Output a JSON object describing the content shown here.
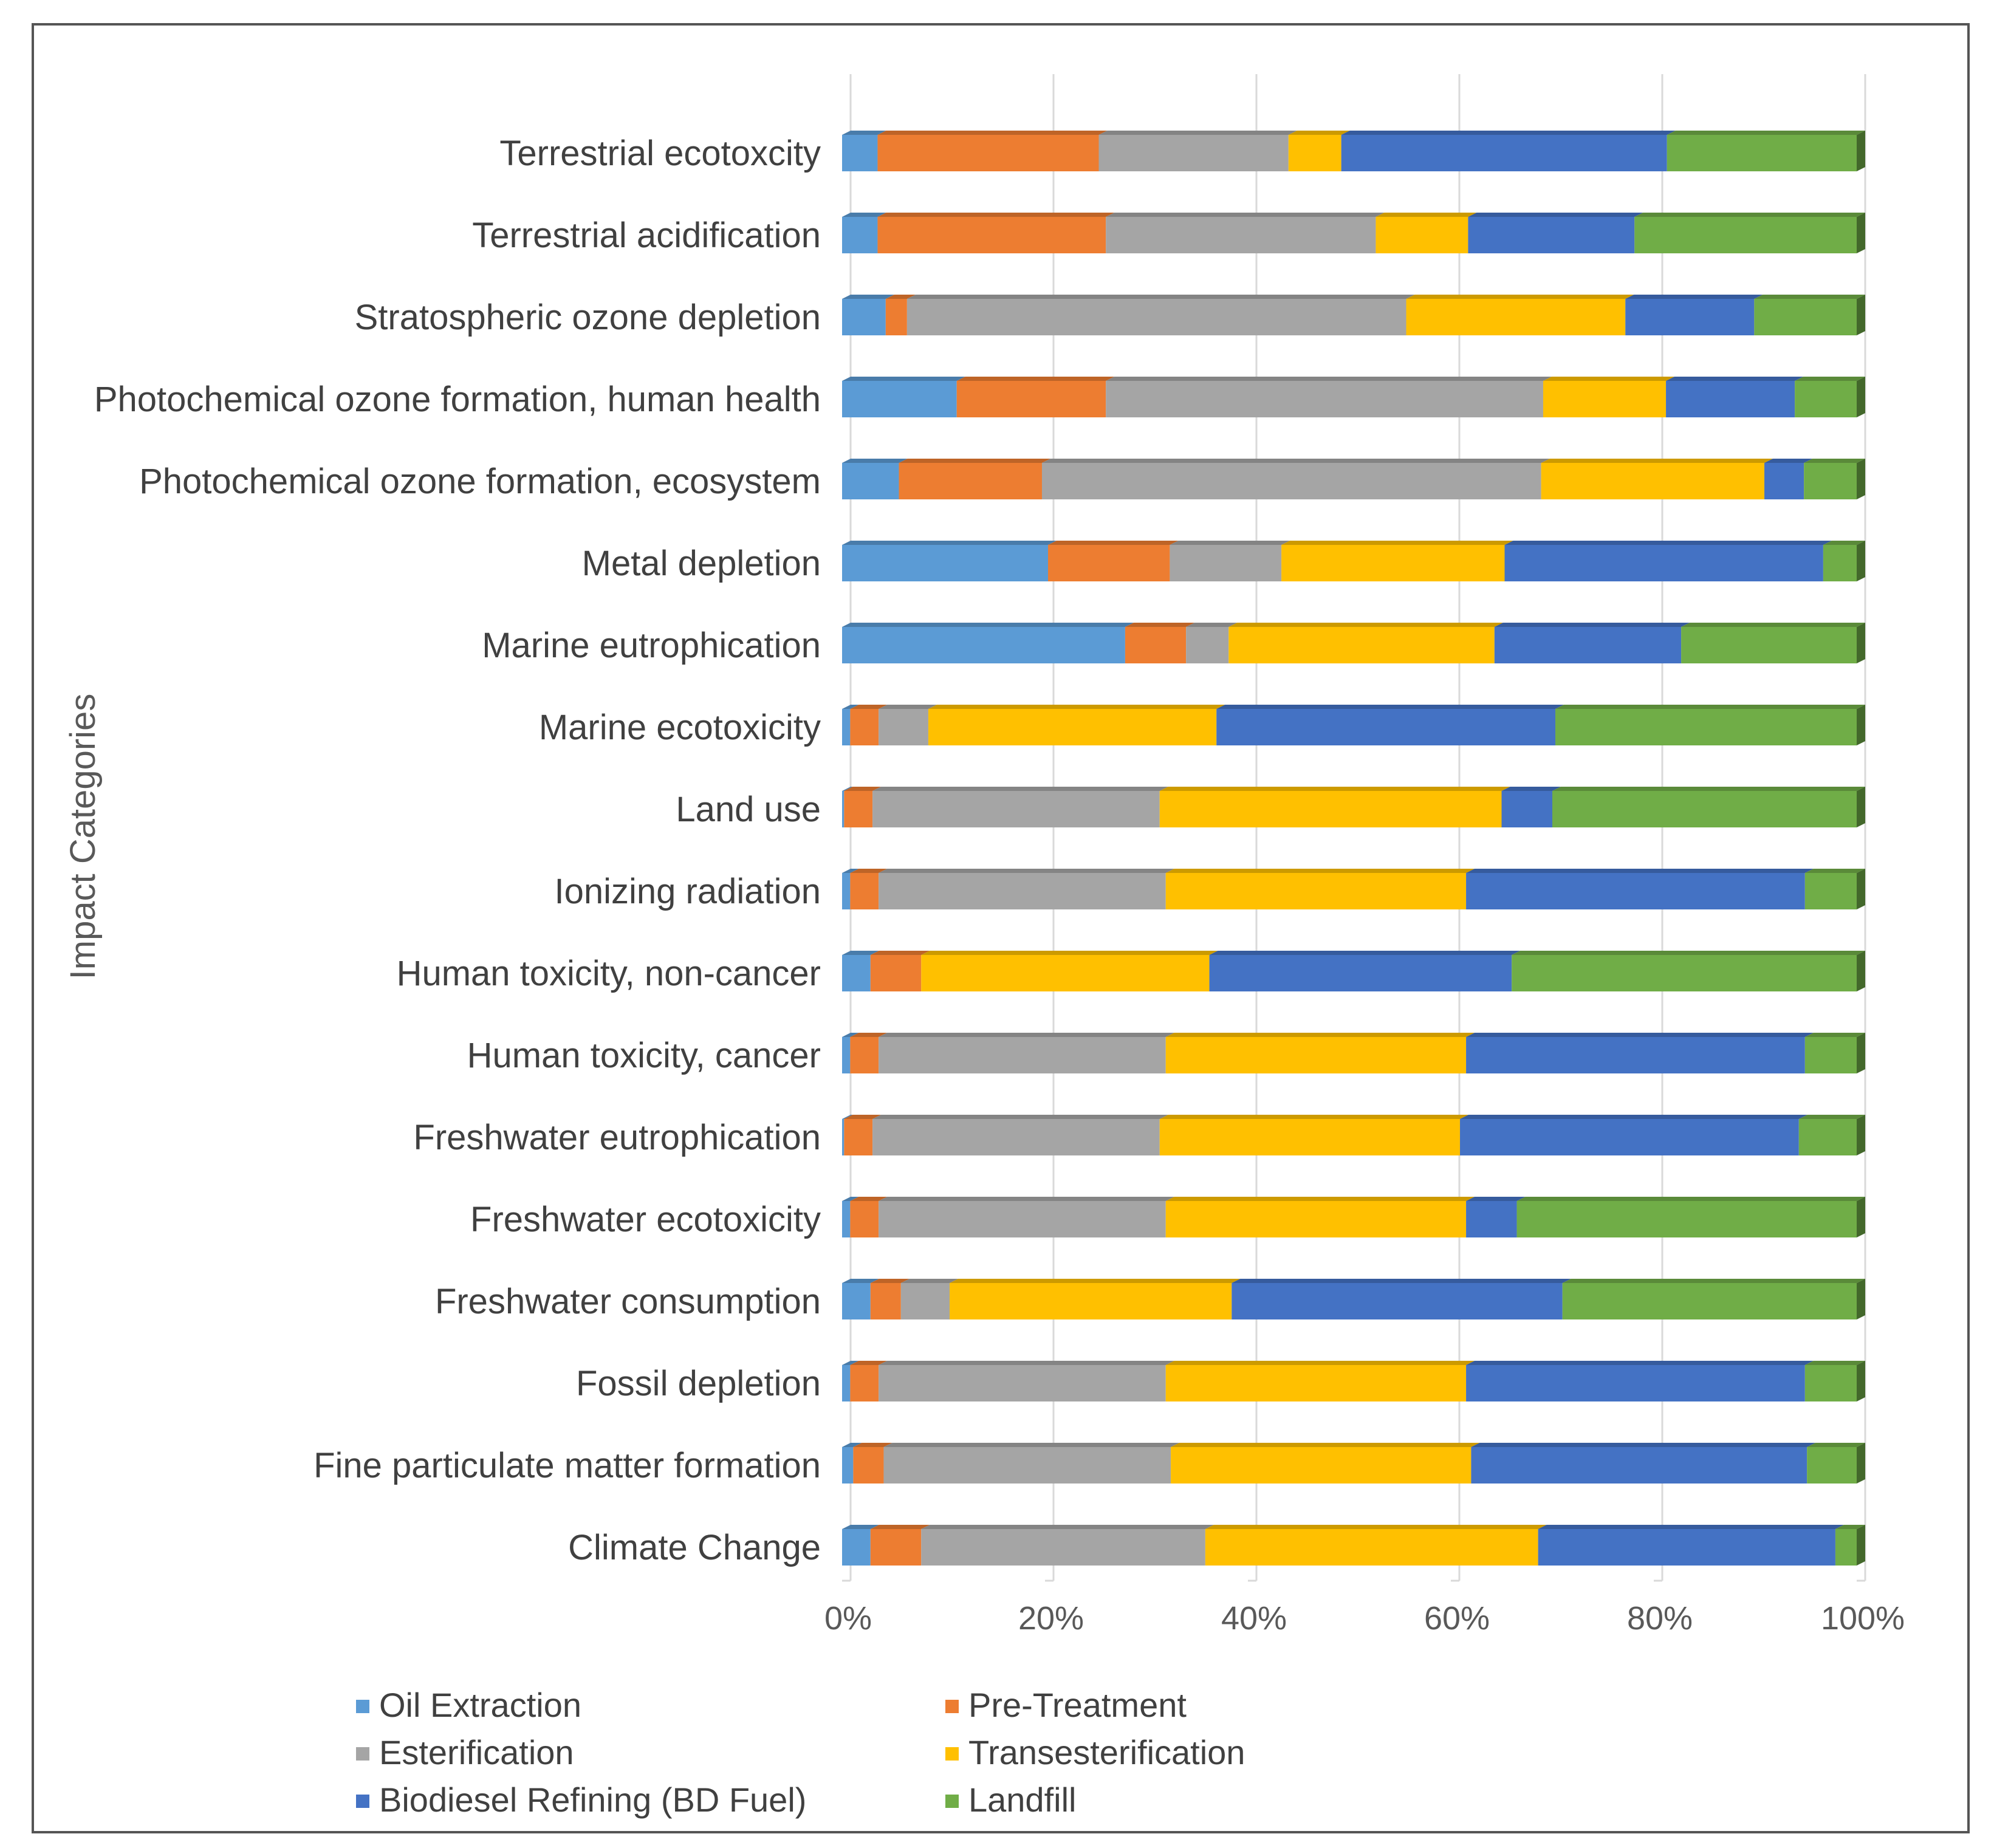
{
  "chart_data": {
    "type": "bar",
    "orientation": "horizontal",
    "stacked": "percent",
    "title": "",
    "xlabel": "",
    "ylabel": "Impact Categories",
    "xlim": [
      0,
      100
    ],
    "x_ticks": [
      "0%",
      "20%",
      "40%",
      "60%",
      "80%",
      "100%"
    ],
    "grid": true,
    "legend_position": "bottom",
    "categories": [
      "Terrestrial ecotoxcity",
      "Terrestrial acidification",
      "Stratospheric ozone depletion",
      "Photochemical ozone formation, human health",
      "Photochemical ozone formation, ecosystem",
      "Metal depletion",
      "Marine eutrophication",
      "Marine ecotoxicity",
      "Land use",
      "Ionizing radiation",
      "Human toxicity, non-cancer",
      "Human toxicity, cancer",
      "Freshwater eutrophication",
      "Freshwater ecotoxicity",
      "Freshwater consumption",
      "Fossil depletion",
      "Fine particulate matter formation",
      "Climate Change"
    ],
    "series": [
      {
        "name": "Oil Extraction",
        "color": "#5b9bd5",
        "values": [
          3.5,
          3.5,
          4.3,
          11.3,
          5.6,
          20.3,
          27.9,
          0.8,
          0.2,
          0.8,
          2.8,
          0.8,
          0.2,
          0.8,
          2.8,
          0.8,
          1.1,
          2.8
        ]
      },
      {
        "name": "Pre-Treatment",
        "color": "#ed7d31",
        "values": [
          21.8,
          22.5,
          2.1,
          14.7,
          14.1,
          12.0,
          6.0,
          2.8,
          2.8,
          2.8,
          5.0,
          2.8,
          2.8,
          2.8,
          3.0,
          2.8,
          3.0,
          5.0
        ]
      },
      {
        "name": "Esterification",
        "color": "#a5a5a5",
        "values": [
          18.7,
          26.6,
          49.2,
          43.1,
          49.2,
          11.0,
          4.2,
          4.9,
          28.3,
          28.3,
          0.0,
          28.3,
          28.3,
          28.3,
          4.8,
          28.3,
          28.3,
          28.0
        ]
      },
      {
        "name": "Transesterification",
        "color": "#ffc000",
        "values": [
          5.2,
          9.1,
          21.6,
          12.1,
          22.0,
          22.0,
          26.2,
          28.4,
          33.7,
          29.6,
          28.4,
          29.6,
          29.6,
          29.6,
          27.8,
          29.6,
          29.6,
          32.8
        ]
      },
      {
        "name": "Biodiesel Refining (BD Fuel)",
        "color": "#4472c4",
        "values": [
          32.1,
          16.4,
          12.7,
          12.7,
          3.9,
          31.4,
          18.4,
          33.4,
          5.0,
          33.4,
          29.8,
          33.4,
          33.4,
          5.0,
          32.6,
          33.4,
          33.1,
          29.3
        ]
      },
      {
        "name": "Landfill",
        "color": "#70ad47",
        "values": [
          18.7,
          21.9,
          10.1,
          6.1,
          5.2,
          3.3,
          17.3,
          29.7,
          30.0,
          5.1,
          34.0,
          5.1,
          5.7,
          33.5,
          29.0,
          5.1,
          4.9,
          2.1
        ]
      }
    ]
  }
}
